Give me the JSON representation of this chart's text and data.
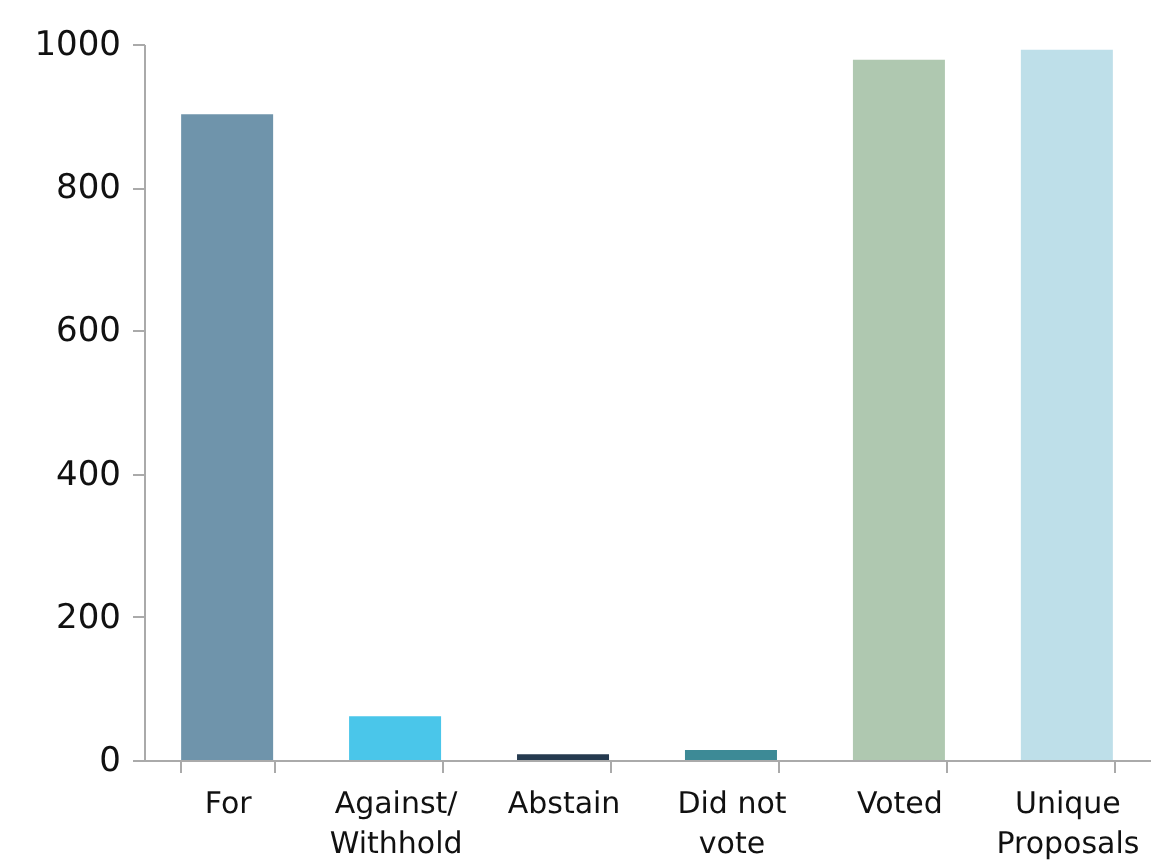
{
  "chart_data": {
    "type": "bar",
    "categories": [
      "For",
      "Against/\nWithhold",
      "Abstain",
      "Did not\nvote",
      "Voted",
      "Unique\nProposals"
    ],
    "values": [
      902,
      61,
      8,
      14,
      978,
      992
    ],
    "colors": [
      "#6f94ab",
      "#4ac6ea",
      "#253a4f",
      "#3d8a96",
      "#afc8b0",
      "#bedfe9"
    ],
    "ylim": [
      0,
      1000
    ],
    "yticks": [
      0,
      200,
      400,
      600,
      800,
      1000
    ],
    "grid": false
  }
}
